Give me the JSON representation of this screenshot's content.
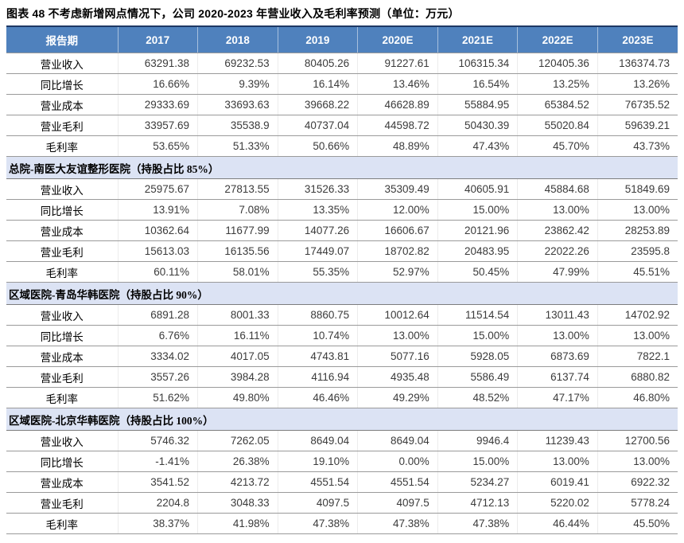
{
  "figure": {
    "title": "图表 48 不考虑新增网点情况下，公司 2020-2023 年营业收入及毛利率预测（单位：万元）"
  },
  "colors": {
    "header_bg": "#4F81BD",
    "header_text": "#FFFFFF",
    "section_bg": "#DCE3F4",
    "frame_border": "#1F3864",
    "row_line": "#9A9A9A"
  },
  "chart_data": {
    "type": "table",
    "title": "不考虑新增网点情况下，公司 2020-2023 年营业收入及毛利率预测（单位：万元）",
    "columns": [
      "报告期",
      "2017",
      "2018",
      "2019",
      "2020E",
      "2021E",
      "2022E",
      "2023E"
    ],
    "sections": [
      {
        "name": "",
        "rows": [
          {
            "label": "营业收入",
            "values": [
              "63291.38",
              "69232.53",
              "80405.26",
              "91227.61",
              "106315.34",
              "120405.36",
              "136374.73"
            ]
          },
          {
            "label": "同比增长",
            "values": [
              "16.66%",
              "9.39%",
              "16.14%",
              "13.46%",
              "16.54%",
              "13.25%",
              "13.26%"
            ]
          },
          {
            "label": "营业成本",
            "values": [
              "29333.69",
              "33693.63",
              "39668.22",
              "46628.89",
              "55884.95",
              "65384.52",
              "76735.52"
            ]
          },
          {
            "label": "营业毛利",
            "values": [
              "33957.69",
              "35538.9",
              "40737.04",
              "44598.72",
              "50430.39",
              "55020.84",
              "59639.21"
            ]
          },
          {
            "label": "毛利率",
            "values": [
              "53.65%",
              "51.33%",
              "50.66%",
              "48.89%",
              "47.43%",
              "45.70%",
              "43.73%"
            ]
          }
        ]
      },
      {
        "name": "总院-南医大友谊整形医院（持股占比 85%）",
        "rows": [
          {
            "label": "营业收入",
            "values": [
              "25975.67",
              "27813.55",
              "31526.33",
              "35309.49",
              "40605.91",
              "45884.68",
              "51849.69"
            ]
          },
          {
            "label": "同比增长",
            "values": [
              "13.91%",
              "7.08%",
              "13.35%",
              "12.00%",
              "15.00%",
              "13.00%",
              "13.00%"
            ]
          },
          {
            "label": "营业成本",
            "values": [
              "10362.64",
              "11677.99",
              "14077.26",
              "16606.67",
              "20121.96",
              "23862.42",
              "28253.89"
            ]
          },
          {
            "label": "营业毛利",
            "values": [
              "15613.03",
              "16135.56",
              "17449.07",
              "18702.82",
              "20483.95",
              "22022.26",
              "23595.8"
            ]
          },
          {
            "label": "毛利率",
            "values": [
              "60.11%",
              "58.01%",
              "55.35%",
              "52.97%",
              "50.45%",
              "47.99%",
              "45.51%"
            ]
          }
        ]
      },
      {
        "name": "区域医院-青岛华韩医院（持股占比 90%）",
        "rows": [
          {
            "label": "营业收入",
            "values": [
              "6891.28",
              "8001.33",
              "8860.75",
              "10012.64",
              "11514.54",
              "13011.43",
              "14702.92"
            ]
          },
          {
            "label": "同比增长",
            "values": [
              "6.76%",
              "16.11%",
              "10.74%",
              "13.00%",
              "15.00%",
              "13.00%",
              "13.00%"
            ]
          },
          {
            "label": "营业成本",
            "values": [
              "3334.02",
              "4017.05",
              "4743.81",
              "5077.16",
              "5928.05",
              "6873.69",
              "7822.1"
            ]
          },
          {
            "label": "营业毛利",
            "values": [
              "3557.26",
              "3984.28",
              "4116.94",
              "4935.48",
              "5586.49",
              "6137.74",
              "6880.82"
            ]
          },
          {
            "label": "毛利率",
            "values": [
              "51.62%",
              "49.80%",
              "46.46%",
              "49.29%",
              "48.52%",
              "47.17%",
              "46.80%"
            ]
          }
        ]
      },
      {
        "name": "区域医院-北京华韩医院（持股占比 100%）",
        "rows": [
          {
            "label": "营业收入",
            "values": [
              "5746.32",
              "7262.05",
              "8649.04",
              "8649.04",
              "9946.4",
              "11239.43",
              "12700.56"
            ]
          },
          {
            "label": "同比增长",
            "values": [
              "-1.41%",
              "26.38%",
              "19.10%",
              "0.00%",
              "15.00%",
              "13.00%",
              "13.00%"
            ]
          },
          {
            "label": "营业成本",
            "values": [
              "3541.52",
              "4213.72",
              "4551.54",
              "4551.54",
              "5234.27",
              "6019.41",
              "6922.32"
            ]
          },
          {
            "label": "营业毛利",
            "values": [
              "2204.8",
              "3048.33",
              "4097.5",
              "4097.5",
              "4712.13",
              "5220.02",
              "5778.24"
            ]
          },
          {
            "label": "毛利率",
            "values": [
              "38.37%",
              "41.98%",
              "47.38%",
              "47.38%",
              "47.38%",
              "46.44%",
              "45.50%"
            ]
          }
        ]
      }
    ]
  }
}
